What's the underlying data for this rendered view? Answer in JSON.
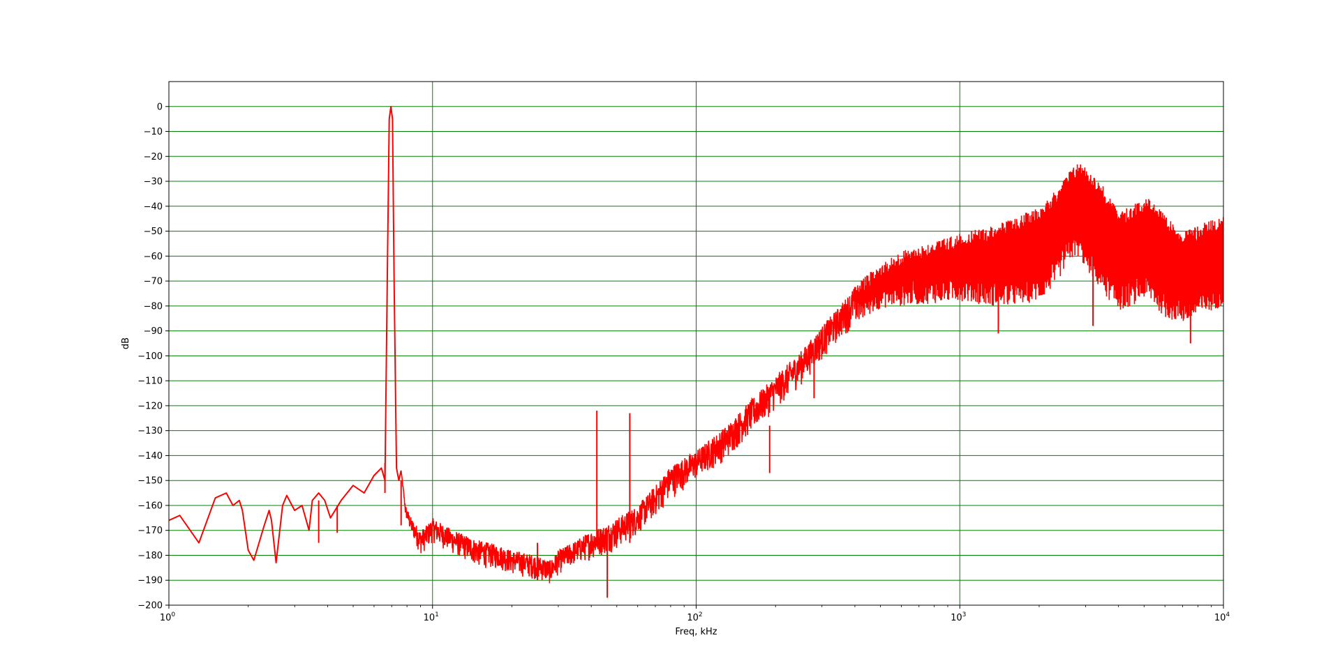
{
  "chart_data": {
    "type": "line",
    "title": "",
    "xlabel": "Freq, kHz",
    "ylabel": "dB",
    "x_scale": "log",
    "xlim": [
      1,
      10000
    ],
    "ylim": [
      -200,
      10
    ],
    "x_ticks": [
      1,
      10,
      100,
      1000,
      10000
    ],
    "x_tick_labels": [
      {
        "base": "10",
        "exp": "0"
      },
      {
        "base": "10",
        "exp": "1"
      },
      {
        "base": "10",
        "exp": "2"
      },
      {
        "base": "10",
        "exp": "3"
      },
      {
        "base": "10",
        "exp": "4"
      }
    ],
    "y_ticks": [
      0,
      -10,
      -20,
      -30,
      -40,
      -50,
      -60,
      -70,
      -80,
      -90,
      -100,
      -110,
      -120,
      -130,
      -140,
      -150,
      -160,
      -170,
      -180,
      -190,
      -200
    ],
    "y_tick_labels": [
      "0",
      "−10",
      "−20",
      "−30",
      "−40",
      "−50",
      "−60",
      "−70",
      "−80",
      "−90",
      "−100",
      "−110",
      "−120",
      "−130",
      "−140",
      "−150",
      "−160",
      "−170",
      "−180",
      "−190",
      "−200"
    ],
    "grid": true,
    "grid_color": "#008000",
    "line_color": "#ff0000",
    "series": [
      {
        "x": [
          1,
          1.1,
          1.3,
          1.5,
          1.65,
          1.75,
          1.85,
          1.9,
          2.0,
          2.1,
          2.3,
          2.4,
          2.45,
          2.55,
          2.7,
          2.8,
          3.0,
          3.2,
          3.4,
          3.5,
          3.7,
          3.9,
          4.1,
          4.5,
          5.0,
          5.5,
          6.0,
          6.4,
          6.6,
          6.75,
          6.85,
          6.95,
          7.05,
          7.15,
          7.3,
          7.45,
          7.6,
          7.9,
          8.3,
          9.0,
          9.5,
          10,
          12,
          15,
          18,
          20,
          25,
          28,
          30,
          35,
          40,
          45,
          50,
          60,
          70,
          80,
          100,
          130,
          160,
          200,
          250,
          300,
          350,
          400,
          450,
          500,
          600,
          800,
          1000,
          1300,
          1600,
          2000,
          2300,
          2600,
          2800,
          3000,
          3500,
          4000,
          4500,
          5000,
          5500,
          6000,
          7000,
          8000,
          9000,
          10000
        ],
        "y": [
          -166,
          -164,
          -175,
          -157,
          -155,
          -160,
          -158,
          -162,
          -178,
          -182,
          -168,
          -162,
          -166,
          -183,
          -160,
          -156,
          -162,
          -160,
          -170,
          -158,
          -155,
          -158,
          -165,
          -158,
          -152,
          -155,
          -148,
          -145,
          -150,
          -60,
          -5,
          0,
          -5,
          -70,
          -145,
          -150,
          -146,
          -160,
          -165,
          -170,
          -168,
          -165,
          -170,
          -174,
          -176,
          -178,
          -180,
          -182,
          -178,
          -174,
          -170,
          -168,
          -165,
          -160,
          -152,
          -144,
          -138,
          -128,
          -118,
          -108,
          -98,
          -88,
          -80,
          -72,
          -67,
          -63,
          -58,
          -54,
          -51,
          -48,
          -45,
          -40,
          -34,
          -26,
          -22,
          -24,
          -32,
          -42,
          -40,
          -36,
          -38,
          -44,
          -50,
          -48,
          -45,
          -44
        ],
        "y_lower": [
          -166,
          -164,
          -175,
          -157,
          -155,
          -160,
          -158,
          -162,
          -178,
          -182,
          -168,
          -162,
          -166,
          -183,
          -160,
          -156,
          -162,
          -160,
          -170,
          -158,
          -155,
          -158,
          -165,
          -158,
          -152,
          -155,
          -148,
          -145,
          -150,
          -60,
          -5,
          0,
          -5,
          -70,
          -145,
          -150,
          -146,
          -165,
          -172,
          -180,
          -178,
          -175,
          -180,
          -185,
          -186,
          -188,
          -190,
          -192,
          -188,
          -184,
          -182,
          -180,
          -178,
          -172,
          -165,
          -158,
          -150,
          -142,
          -132,
          -122,
          -112,
          -102,
          -94,
          -88,
          -84,
          -81,
          -80,
          -79,
          -78,
          -80,
          -80,
          -78,
          -72,
          -62,
          -60,
          -65,
          -75,
          -82,
          -80,
          -77,
          -80,
          -85,
          -87,
          -85,
          -82,
          -80
        ]
      }
    ],
    "spikes": [
      {
        "x": 6.6,
        "y_top": -143,
        "y_bottom": -155
      },
      {
        "x": 7.6,
        "y_top": -150,
        "y_bottom": -168
      },
      {
        "x": 3.7,
        "y_top": -158,
        "y_bottom": -175
      },
      {
        "x": 4.35,
        "y_top": -160,
        "y_bottom": -171
      },
      {
        "x": 42,
        "y_top": -122,
        "y_bottom": -175
      },
      {
        "x": 56,
        "y_top": -123,
        "y_bottom": -175
      },
      {
        "x": 46,
        "y_top": -170,
        "y_bottom": -197
      },
      {
        "x": 25,
        "y_top": -175,
        "y_bottom": -190
      },
      {
        "x": 190,
        "y_top": -128,
        "y_bottom": -147
      },
      {
        "x": 1400,
        "y_top": -55,
        "y_bottom": -91
      },
      {
        "x": 3200,
        "y_top": -58,
        "y_bottom": -88
      },
      {
        "x": 7500,
        "y_top": -70,
        "y_bottom": -95
      },
      {
        "x": 280,
        "y_top": -100,
        "y_bottom": -117
      }
    ]
  }
}
